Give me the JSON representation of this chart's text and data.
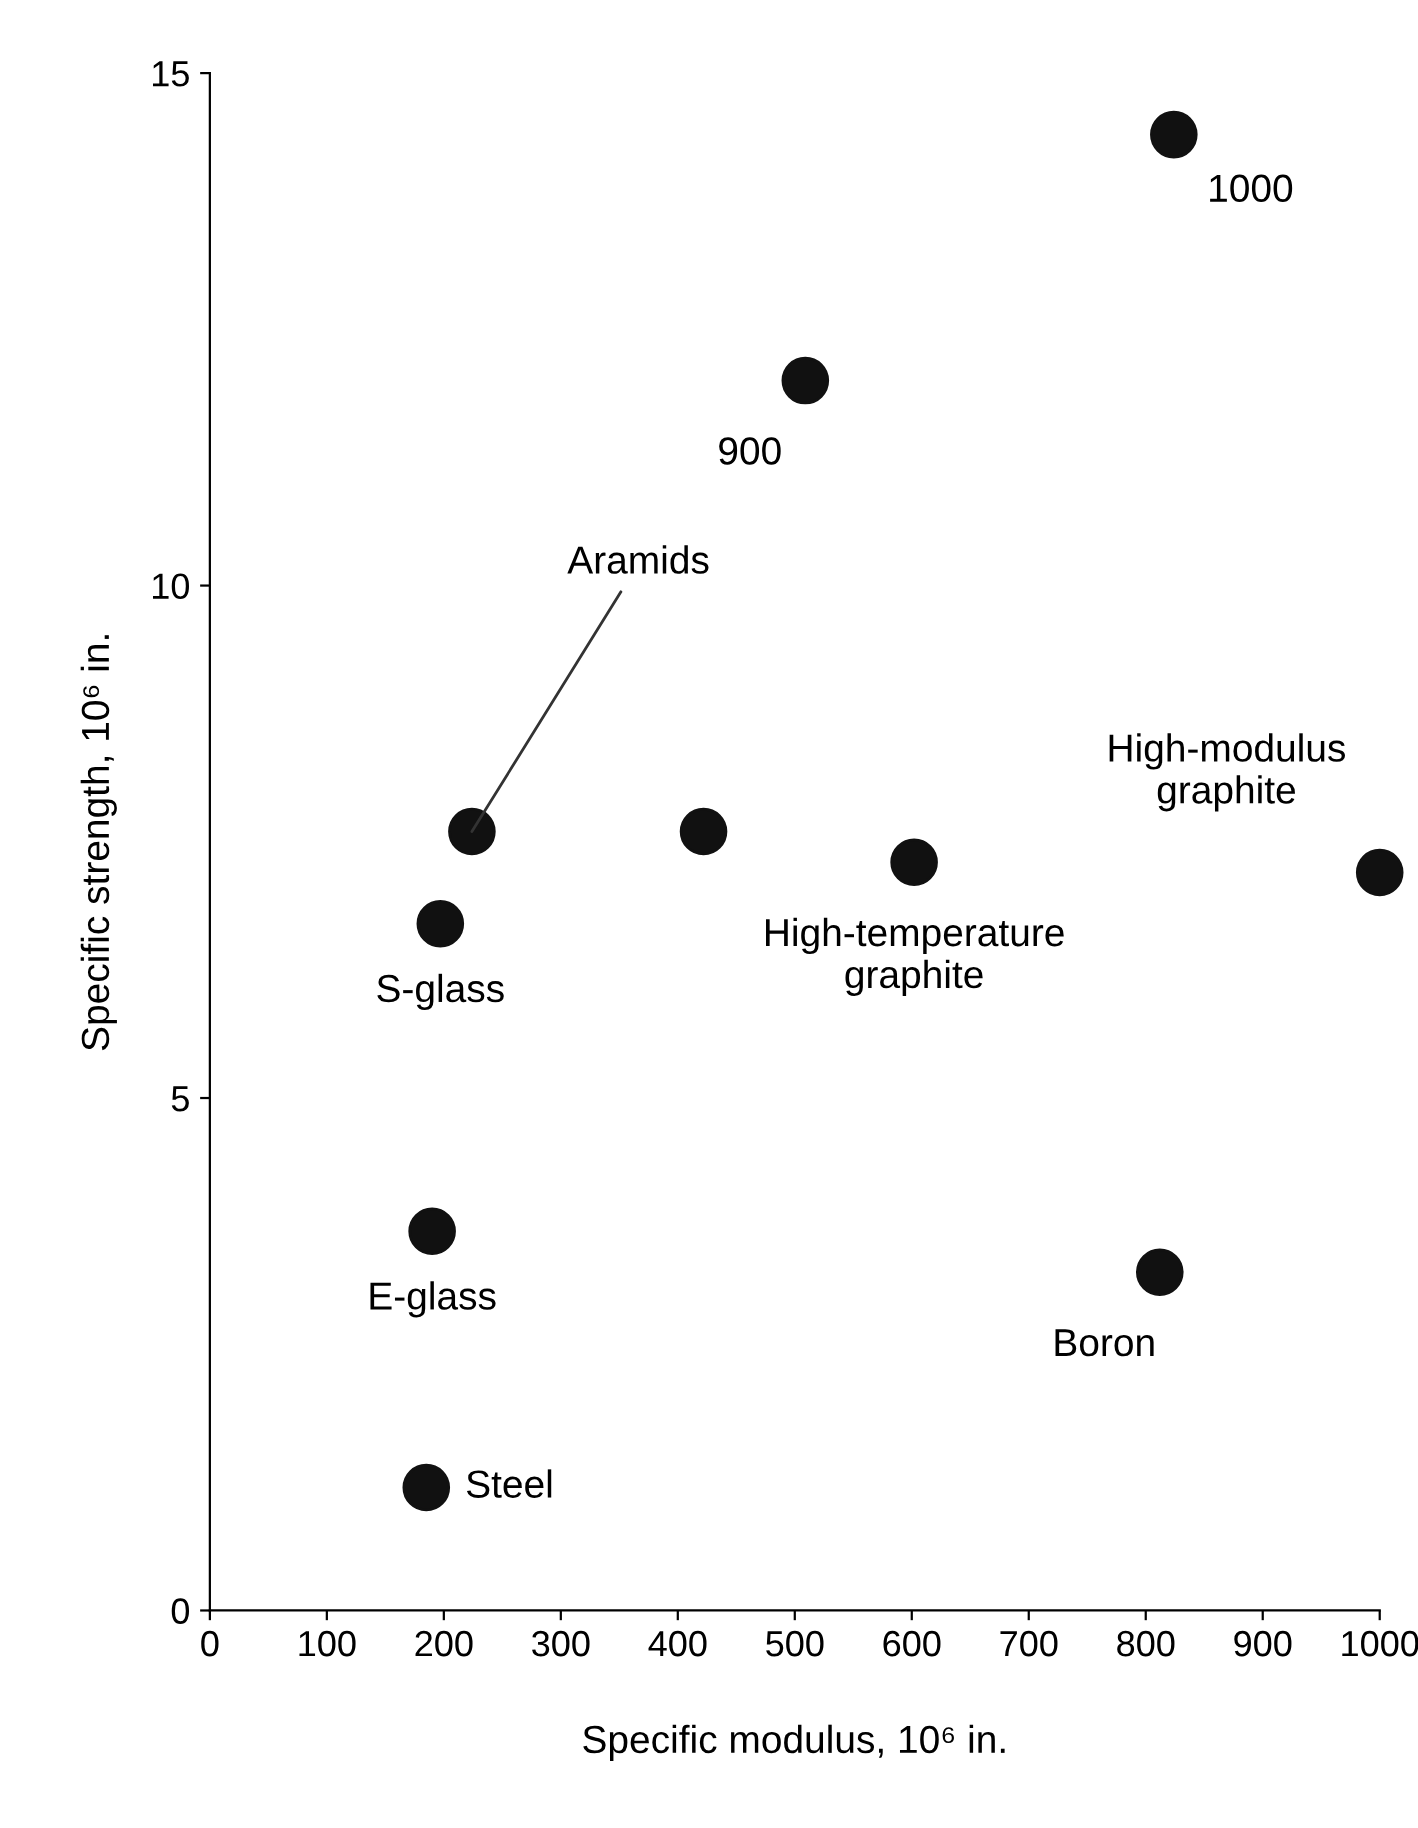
{
  "chart_data": {
    "type": "scatter",
    "xlabel": "Specific modulus, 10⁶ in.",
    "ylabel": "Specific strength, 10⁶ in.",
    "x": [
      185,
      190,
      197,
      224,
      422,
      602,
      1000,
      812,
      509,
      824
    ],
    "series": [
      {
        "color": "#111111",
        "values": [
          1.2,
          3.7,
          6.7,
          7.6,
          7.6,
          7.3,
          7.2,
          3.3,
          12.0,
          14.4
        ]
      }
    ],
    "marker": "circle",
    "grid": false,
    "xlim": [
      0,
      1000
    ],
    "xticks": [
      0,
      100,
      200,
      300,
      400,
      500,
      600,
      700,
      800,
      900,
      1000
    ],
    "ylim": [
      0,
      15
    ],
    "yticks": [
      0,
      5,
      10,
      15
    ],
    "annotations": [
      {
        "text": "Steel",
        "x": 185,
        "y": 1.2
      },
      {
        "text": "E-glass",
        "x": 190,
        "y": 3.7
      },
      {
        "text": "S-glass",
        "x": 197,
        "y": 6.7
      },
      {
        "text": "Aramids",
        "x": 224,
        "y": 7.6
      },
      {
        "text": "High-temperature\ngraphite",
        "x": 602,
        "y": 7.3
      },
      {
        "text": "High-modulus\ngraphite",
        "x": 1000,
        "y": 7.2
      },
      {
        "text": "Boron",
        "x": 812,
        "y": 3.3
      },
      {
        "text": "900",
        "x": 509,
        "y": 12.0
      },
      {
        "text": "1000",
        "x": 824,
        "y": 14.4
      }
    ]
  }
}
